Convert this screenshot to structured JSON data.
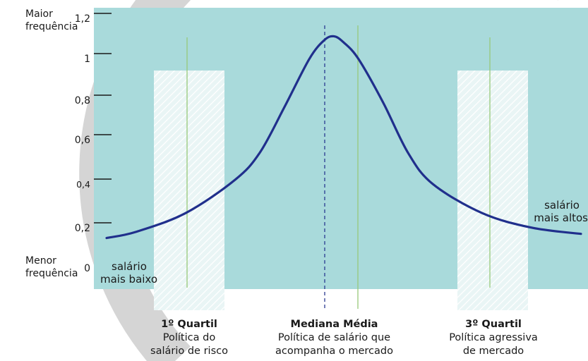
{
  "chart_data": {
    "type": "line",
    "series": [
      {
        "x": [
          0.04,
          0.1,
          0.2,
          0.3,
          0.35,
          0.4,
          0.45,
          0.48,
          0.5,
          0.52,
          0.55,
          0.6,
          0.65,
          0.7,
          0.8,
          0.9,
          1.0
        ],
        "values": [
          0.12,
          0.15,
          0.24,
          0.4,
          0.53,
          0.75,
          0.98,
          1.07,
          1.09,
          1.06,
          0.98,
          0.77,
          0.53,
          0.38,
          0.24,
          0.17,
          0.14
        ]
      }
    ],
    "ylim": [
      0,
      1.2
    ],
    "yticks": [
      "0",
      "0,2",
      "0,4",
      "0,6",
      "0,8",
      "1",
      "1,2"
    ],
    "y_axis_top_label": [
      "Maior",
      "frequência"
    ],
    "y_axis_bottom_label": [
      "Menor",
      "frequência"
    ],
    "x_left_label": [
      "salário",
      "mais baixo"
    ],
    "x_right_label": [
      "salário",
      "mais altos"
    ],
    "quartile_bands": [
      {
        "title": "1º Quartil",
        "lines": [
          "Política do",
          "salário de risco"
        ]
      },
      {
        "title": "Mediana Média",
        "lines": [
          "Política de salário que",
          "acompanha o mercado"
        ]
      },
      {
        "title": "3º Quartil",
        "lines": [
          "Política agressiva",
          "de mercado"
        ]
      }
    ],
    "grid": false,
    "colors": {
      "plot_background": "#a9dadb",
      "curve": "#202f8c",
      "band": "#e6f3f3",
      "marker_line": "#97c97a",
      "median_dash": "#2a3990",
      "decor_ring": "#d5d5d5"
    }
  }
}
